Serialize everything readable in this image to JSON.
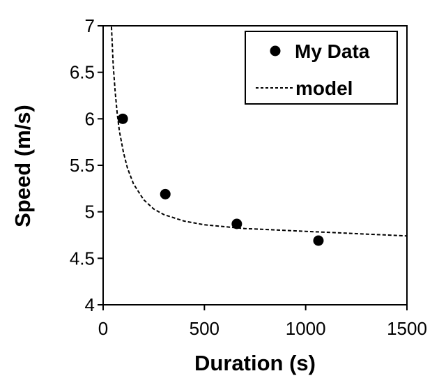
{
  "chart_data": {
    "type": "scatter",
    "xlabel": "Duration (s)",
    "ylabel": "Speed (m/s)",
    "xlim": [
      0,
      1500
    ],
    "ylim": [
      4,
      7
    ],
    "xticks": [
      0,
      500,
      1000,
      1500
    ],
    "yticks": [
      4,
      4.5,
      5,
      5.5,
      6,
      6.5,
      7
    ],
    "grid": false,
    "legend_position": "top-right",
    "series": [
      {
        "name": "My Data",
        "kind": "markers",
        "color": "#000000",
        "x": [
          97,
          307,
          660,
          1063
        ],
        "y": [
          6.0,
          5.19,
          4.87,
          4.69
        ]
      },
      {
        "name": "model",
        "kind": "dashed-line",
        "color": "#000000",
        "x": [
          40,
          50,
          60,
          70,
          80,
          100,
          120,
          150,
          200,
          250,
          300,
          400,
          500,
          600,
          700,
          800,
          1000,
          1200,
          1500
        ],
        "y": [
          7.05,
          6.57,
          6.28,
          6.05,
          5.87,
          5.64,
          5.47,
          5.3,
          5.13,
          5.03,
          4.97,
          4.9,
          4.86,
          4.84,
          4.82,
          4.81,
          4.79,
          4.77,
          4.74
        ]
      }
    ]
  }
}
